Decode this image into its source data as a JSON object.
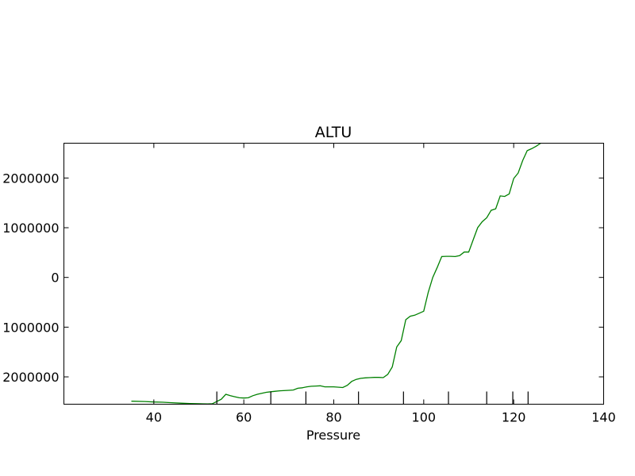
{
  "chart_data": {
    "type": "line",
    "title": "ALTU",
    "xlabel": "Pressure",
    "ylabel": "",
    "xlim": [
      20,
      140
    ],
    "ylim": [
      -2550000,
      2700000
    ],
    "xticks": [
      40,
      60,
      80,
      100,
      120,
      140
    ],
    "yticks": [
      -2000000,
      -1000000,
      0,
      1000000,
      2000000
    ],
    "ytick_labels": [
      "2000000",
      "1000000",
      "0",
      "1000000",
      "2000000"
    ],
    "grid": false,
    "legend": "none",
    "rug_x": [
      54.0,
      66.0,
      73.8,
      85.5,
      95.5,
      105.5,
      114.0,
      119.8,
      123.2
    ],
    "series": [
      {
        "color": "#008000",
        "x": [
          35,
          38,
          40,
          42,
          44,
          46,
          48,
          50,
          52,
          53,
          55,
          56,
          57,
          58,
          59,
          60,
          61,
          62,
          63,
          64,
          65,
          66,
          67,
          68,
          70,
          71,
          72,
          73,
          74,
          75,
          76,
          77,
          78,
          80,
          82,
          83,
          84,
          85,
          86,
          87,
          88,
          89,
          90,
          91,
          92,
          93,
          94,
          95,
          96,
          97,
          98,
          99,
          100,
          101,
          102,
          103,
          104,
          105,
          106,
          107,
          108,
          109,
          110,
          111,
          112,
          113,
          114,
          115,
          116,
          117,
          118,
          119,
          120,
          121,
          122,
          123,
          124,
          125,
          126
        ],
        "y": [
          -2490000,
          -2495000,
          -2505000,
          -2510000,
          -2520000,
          -2530000,
          -2535000,
          -2540000,
          -2545000,
          -2540000,
          -2450000,
          -2350000,
          -2380000,
          -2400000,
          -2420000,
          -2425000,
          -2420000,
          -2380000,
          -2350000,
          -2330000,
          -2310000,
          -2300000,
          -2290000,
          -2280000,
          -2270000,
          -2265000,
          -2230000,
          -2220000,
          -2200000,
          -2190000,
          -2185000,
          -2180000,
          -2200000,
          -2200000,
          -2215000,
          -2170000,
          -2090000,
          -2050000,
          -2030000,
          -2020000,
          -2015000,
          -2010000,
          -2010000,
          -2015000,
          -1950000,
          -1800000,
          -1400000,
          -1270000,
          -850000,
          -780000,
          -760000,
          -720000,
          -680000,
          -300000,
          0,
          200000,
          420000,
          425000,
          425000,
          420000,
          440000,
          510000,
          510000,
          760000,
          1000000,
          1120000,
          1200000,
          1350000,
          1380000,
          1640000,
          1630000,
          1680000,
          1990000,
          2100000,
          2350000,
          2550000,
          2590000,
          2640000,
          2700000
        ]
      }
    ]
  }
}
